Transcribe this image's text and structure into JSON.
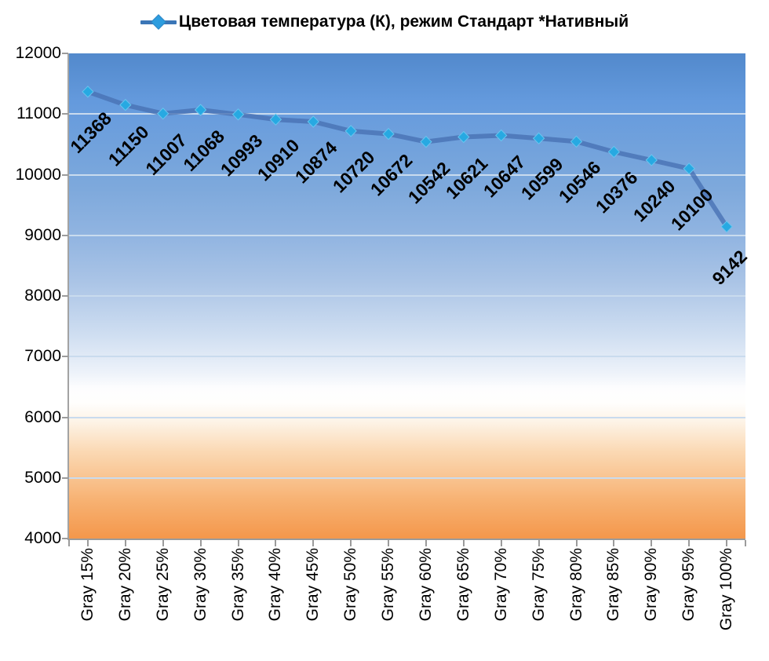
{
  "chart_data": {
    "type": "line",
    "title": "Цветовая температура (К), режим Стандарт *Нативный",
    "legend_position": "top",
    "categories": [
      "Gray 15%",
      "Gray 20%",
      "Gray 25%",
      "Gray 30%",
      "Gray 35%",
      "Gray 40%",
      "Gray 45%",
      "Gray 50%",
      "Gray 55%",
      "Gray 60%",
      "Gray 65%",
      "Gray 70%",
      "Gray 75%",
      "Gray 80%",
      "Gray 85%",
      "Gray 90%",
      "Gray 95%",
      "Gray 100%"
    ],
    "values": [
      11368,
      11150,
      11007,
      11068,
      10993,
      10910,
      10874,
      10720,
      10672,
      10542,
      10621,
      10647,
      10599,
      10546,
      10376,
      10240,
      10100,
      9142
    ],
    "data_labels_visible": true,
    "xlabel": "",
    "ylabel": "",
    "ylim": [
      4000,
      12000
    ],
    "ytick_step": 1000,
    "y_ticks": [
      "12000",
      "11000",
      "10000",
      "9000",
      "8000",
      "7000",
      "6000",
      "5000",
      "4000"
    ],
    "grid": true,
    "colors": {
      "series_line": "rgba(72,114,180,0.8)",
      "marker_fill": "#27a9e2",
      "marker_stroke": "#6ac4ee",
      "gridline": "#c9dbee",
      "axis_line": "#9b9b9b",
      "text": "#000000",
      "legend_line": "#3b76b7",
      "legend_diamond": "#2d9ddf",
      "plot_gradient_top": "#5289cc",
      "plot_gradient_middle": "#ffffff",
      "plot_gradient_bottom": "#f4974b"
    }
  }
}
